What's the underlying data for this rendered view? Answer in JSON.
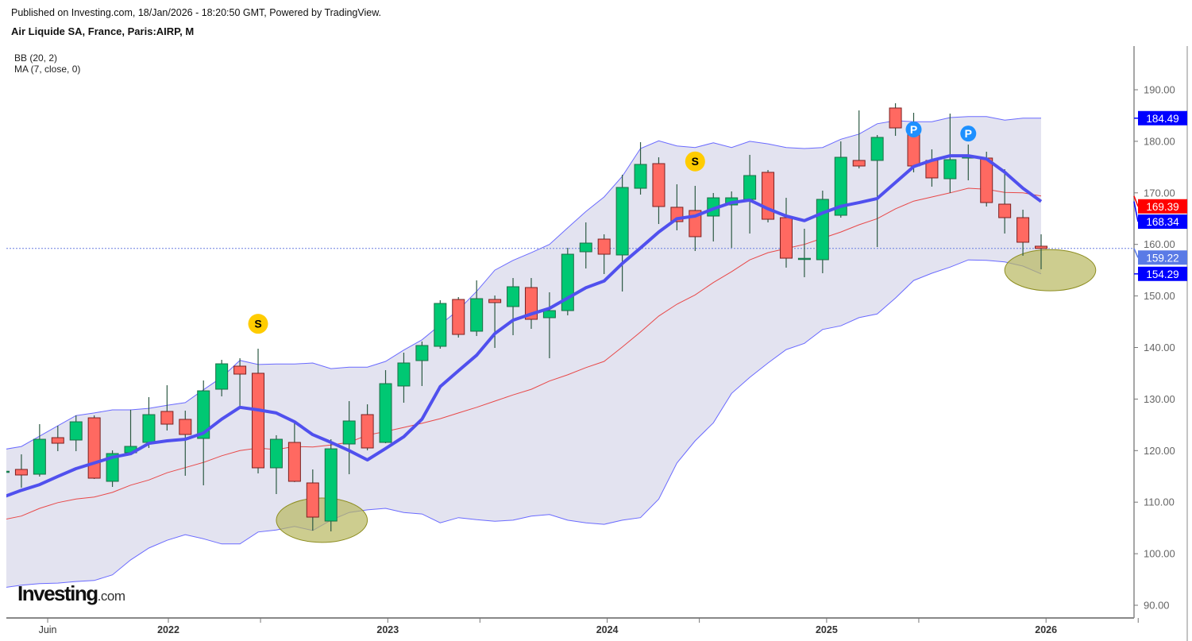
{
  "header": {
    "published": "Published on Investing.com, 18/Jan/2026 - 18:20:50 GMT, Powered by TradingView.",
    "title": "Air Liquide SA, France, Paris:AIRP, M"
  },
  "legend": {
    "bb": "BB (20, 2)",
    "ma": "MA (7, close, 0)"
  },
  "watermark": {
    "main": "Investing",
    "suffix": ".com"
  },
  "chart_data": {
    "type": "candlestick",
    "title": "Air Liquide SA, France, Paris:AIRP, M",
    "interval": "monthly",
    "first_month": "2021-04",
    "columns": [
      "open",
      "high",
      "low",
      "close"
    ],
    "candles": [
      [
        115.9,
        116.1,
        115.7,
        116.0
      ],
      [
        116.35,
        119.28,
        112.81,
        115.27
      ],
      [
        115.42,
        125.13,
        114.96,
        122.2
      ],
      [
        122.51,
        124.82,
        119.89,
        121.43
      ],
      [
        122.05,
        126.83,
        119.89,
        125.59
      ],
      [
        126.36,
        126.83,
        114.5,
        114.65
      ],
      [
        114.04,
        120.05,
        112.96,
        119.43
      ],
      [
        119.59,
        127.91,
        119.28,
        120.82
      ],
      [
        121.59,
        130.37,
        120.51,
        126.98
      ],
      [
        127.6,
        132.68,
        123.9,
        125.13
      ],
      [
        126.06,
        127.75,
        115.12,
        123.13
      ],
      [
        122.36,
        133.61,
        113.27,
        131.6
      ],
      [
        131.91,
        137.61,
        130.52,
        136.84
      ],
      [
        136.38,
        137.92,
        128.68,
        134.84
      ],
      [
        135.0,
        139.77,
        115.58,
        116.66
      ],
      [
        116.66,
        122.98,
        111.57,
        122.2
      ],
      [
        121.59,
        125.44,
        113.9,
        114.04
      ],
      [
        113.73,
        116.35,
        104.48,
        107.1
      ],
      [
        106.33,
        122.2,
        104.33,
        120.35
      ],
      [
        121.28,
        129.6,
        115.42,
        125.75
      ],
      [
        126.98,
        128.98,
        120.05,
        120.51
      ],
      [
        121.59,
        135.61,
        121.43,
        132.99
      ],
      [
        132.53,
        139.0,
        129.29,
        137.0
      ],
      [
        137.46,
        141.16,
        132.53,
        140.39
      ],
      [
        140.23,
        149.17,
        139.77,
        148.55
      ],
      [
        149.32,
        149.78,
        141.93,
        142.54
      ],
      [
        143.16,
        153.02,
        142.23,
        149.48
      ],
      [
        149.32,
        150.09,
        139.92,
        148.71
      ],
      [
        147.94,
        153.48,
        142.39,
        151.79
      ],
      [
        151.63,
        153.48,
        143.62,
        145.47
      ],
      [
        145.78,
        150.71,
        137.92,
        147.16
      ],
      [
        147.16,
        159.34,
        146.24,
        158.1
      ],
      [
        158.57,
        164.27,
        155.33,
        160.26
      ],
      [
        161.03,
        161.96,
        154.25,
        158.1
      ],
      [
        157.95,
        173.51,
        150.86,
        171.05
      ],
      [
        170.89,
        179.83,
        169.66,
        175.52
      ],
      [
        175.67,
        176.9,
        163.96,
        167.35
      ],
      [
        167.2,
        171.66,
        162.73,
        164.42
      ],
      [
        166.58,
        171.36,
        158.72,
        161.5
      ],
      [
        165.5,
        169.97,
        160.57,
        169.04
      ],
      [
        167.66,
        170.28,
        159.34,
        169.04
      ],
      [
        168.74,
        177.37,
        162.11,
        173.36
      ],
      [
        173.98,
        174.44,
        164.27,
        164.88
      ],
      [
        165.19,
        169.04,
        155.49,
        157.33
      ],
      [
        157.1,
        163.04,
        153.64,
        157.3
      ],
      [
        157.03,
        170.43,
        154.41,
        168.74
      ],
      [
        165.65,
        179.98,
        165.19,
        176.9
      ],
      [
        176.29,
        185.99,
        174.75,
        175.21
      ],
      [
        176.29,
        181.22,
        159.49,
        180.76
      ],
      [
        186.46,
        187.38,
        181.06,
        182.6
      ],
      [
        182.3,
        185.53,
        173.98,
        175.21
      ],
      [
        176.29,
        178.44,
        171.2,
        172.9
      ],
      [
        172.74,
        185.38,
        169.97,
        176.44
      ],
      [
        176.75,
        179.37,
        172.43,
        177.06
      ],
      [
        176.75,
        177.98,
        167.35,
        168.12
      ],
      [
        167.81,
        174.59,
        162.11,
        165.19
      ],
      [
        165.19,
        166.73,
        157.8,
        160.42
      ],
      [
        159.65,
        161.96,
        155.18,
        159.22
      ]
    ],
    "bb_upper": [
      120.2,
      120.8,
      122.8,
      124.8,
      126.8,
      127.3,
      127.9,
      127.9,
      128.2,
      128.8,
      129.3,
      131.8,
      134.2,
      137.5,
      136.7,
      136.8,
      136.8,
      137.0,
      135.9,
      136.2,
      136.2,
      137.3,
      139.5,
      141.5,
      144.4,
      147.3,
      150.9,
      155.0,
      156.9,
      158.4,
      160.0,
      163.2,
      166.4,
      169.2,
      173.2,
      178.6,
      180.1,
      179.1,
      178.8,
      179.7,
      178.8,
      180.0,
      179.5,
      178.8,
      178.6,
      178.8,
      180.4,
      181.4,
      183.4,
      184.0,
      183.8,
      183.8,
      184.6,
      184.8,
      184.8,
      184.1,
      184.5,
      184.49
    ],
    "bb_basis": [
      106.6,
      107.3,
      108.8,
      109.9,
      110.6,
      111.0,
      111.9,
      113.3,
      114.3,
      115.7,
      116.7,
      117.7,
      119.0,
      120.0,
      120.5,
      120.2,
      120.8,
      120.7,
      121.1,
      121.6,
      123.0,
      123.7,
      124.5,
      125.3,
      126.2,
      127.3,
      128.4,
      129.6,
      130.8,
      131.9,
      133.5,
      134.7,
      136.1,
      137.3,
      140.1,
      143.0,
      146.1,
      148.4,
      150.2,
      152.6,
      154.7,
      157.0,
      158.4,
      159.2,
      160.0,
      161.2,
      162.4,
      163.8,
      165.0,
      166.9,
      168.4,
      169.2,
      170.0,
      170.9,
      170.7,
      170.1,
      170.0,
      169.39
    ],
    "bb_lower": [
      93.4,
      93.9,
      94.2,
      94.3,
      94.6,
      94.8,
      95.9,
      98.8,
      101.1,
      102.6,
      103.7,
      102.9,
      101.9,
      101.9,
      104.2,
      104.6,
      105.3,
      104.5,
      106.5,
      108.0,
      108.5,
      108.8,
      108.0,
      107.7,
      106.0,
      107.0,
      106.6,
      106.3,
      106.5,
      107.3,
      107.6,
      106.5,
      106.0,
      105.7,
      106.5,
      107.0,
      110.6,
      117.6,
      121.9,
      125.4,
      131.1,
      134.2,
      137.0,
      139.6,
      140.8,
      143.5,
      144.2,
      145.8,
      146.5,
      149.6,
      153.0,
      154.4,
      155.6,
      157.0,
      156.9,
      156.6,
      155.8,
      154.29
    ],
    "ma7": [
      111.0,
      112.3,
      113.4,
      115.0,
      116.5,
      117.6,
      118.7,
      119.4,
      121.4,
      121.9,
      122.2,
      123.4,
      126.1,
      128.4,
      127.9,
      127.3,
      125.6,
      123.1,
      121.6,
      120.0,
      118.2,
      120.4,
      122.7,
      126.1,
      132.4,
      135.5,
      138.5,
      142.7,
      145.3,
      146.5,
      147.6,
      149.6,
      151.6,
      152.9,
      156.3,
      159.3,
      162.4,
      165.0,
      165.5,
      166.9,
      168.1,
      168.6,
      166.9,
      165.5,
      164.6,
      166.1,
      167.4,
      168.1,
      168.9,
      172.0,
      175.1,
      176.3,
      177.2,
      177.2,
      176.6,
      174.0,
      170.9,
      168.34
    ],
    "ylim": [
      88,
      198
    ],
    "y_ticks": [
      {
        "value": 190,
        "label": "190.00"
      },
      {
        "value": 180,
        "label": "180.00"
      },
      {
        "value": 170,
        "label": "170.00"
      },
      {
        "value": 160,
        "label": "160.00"
      },
      {
        "value": 150,
        "label": "150.00"
      },
      {
        "value": 140,
        "label": "140.00"
      },
      {
        "value": 130,
        "label": "130.00"
      },
      {
        "value": 120,
        "label": "120.00"
      },
      {
        "value": 110,
        "label": "110.00"
      },
      {
        "value": 100,
        "label": "100.00"
      },
      {
        "value": 90,
        "label": "90.00"
      }
    ],
    "x_ticks": [
      {
        "year": 2021.45,
        "label": "Juin"
      },
      {
        "year": 2022.0,
        "label": "2022"
      },
      {
        "year": 2022.42,
        "label": ""
      },
      {
        "year": 2023.0,
        "label": "2023"
      },
      {
        "year": 2023.42,
        "label": ""
      },
      {
        "year": 2024.0,
        "label": "2024"
      },
      {
        "year": 2024.42,
        "label": ""
      },
      {
        "year": 2025.0,
        "label": "2025"
      },
      {
        "year": 2025.42,
        "label": ""
      },
      {
        "year": 2026.0,
        "label": "2026"
      },
      {
        "year": 2026.42,
        "label": ""
      }
    ],
    "price_tags": [
      {
        "value": 184.49,
        "label": "184.49",
        "color": "#0000ff",
        "series": "BB upper"
      },
      {
        "value": 169.39,
        "label": "169.39",
        "color": "#ff0000",
        "series": "BB basis"
      },
      {
        "value": 168.34,
        "label": "168.34",
        "color": "#0000ff",
        "series": "MA 7"
      },
      {
        "value": 159.22,
        "label": "159.22",
        "color": "#5a7ae6",
        "series": "Last price"
      },
      {
        "value": 154.29,
        "label": "154.29",
        "color": "#0000ff",
        "series": "BB lower"
      }
    ],
    "last_price": 159.22,
    "markers": [
      {
        "label": "S",
        "month": "2022-06",
        "price": 144.6,
        "color": "#ffcc00",
        "text_color": "#000000"
      },
      {
        "label": "S",
        "month": "2024-06",
        "price": 176.1,
        "color": "#ffcc00",
        "text_color": "#000000"
      },
      {
        "label": "P",
        "month": "2025-06",
        "price": 182.3,
        "color": "#1e90ff",
        "text_color": "#ffffff"
      },
      {
        "label": "P",
        "month": "2025-09",
        "price": 181.5,
        "color": "#1e90ff",
        "text_color": "#ffffff"
      }
    ],
    "highlights": [
      {
        "center_month_index": 16.5,
        "center_price": 106.5,
        "radius_months": 2.5,
        "radius_price": 4.3
      },
      {
        "center_month_index": 56.5,
        "center_price": 155.0,
        "radius_months": 2.5,
        "radius_price": 4.0
      }
    ],
    "colors": {
      "up": "#00c873",
      "down": "#ff6961",
      "up_border": "#1e6e46",
      "down_border": "#7a2222",
      "band_fill": "#e3e3f0",
      "band_line": "#6a6aff",
      "basis": "#e84848",
      "ma": "#5050ee",
      "highlight": "#b8b860"
    }
  }
}
